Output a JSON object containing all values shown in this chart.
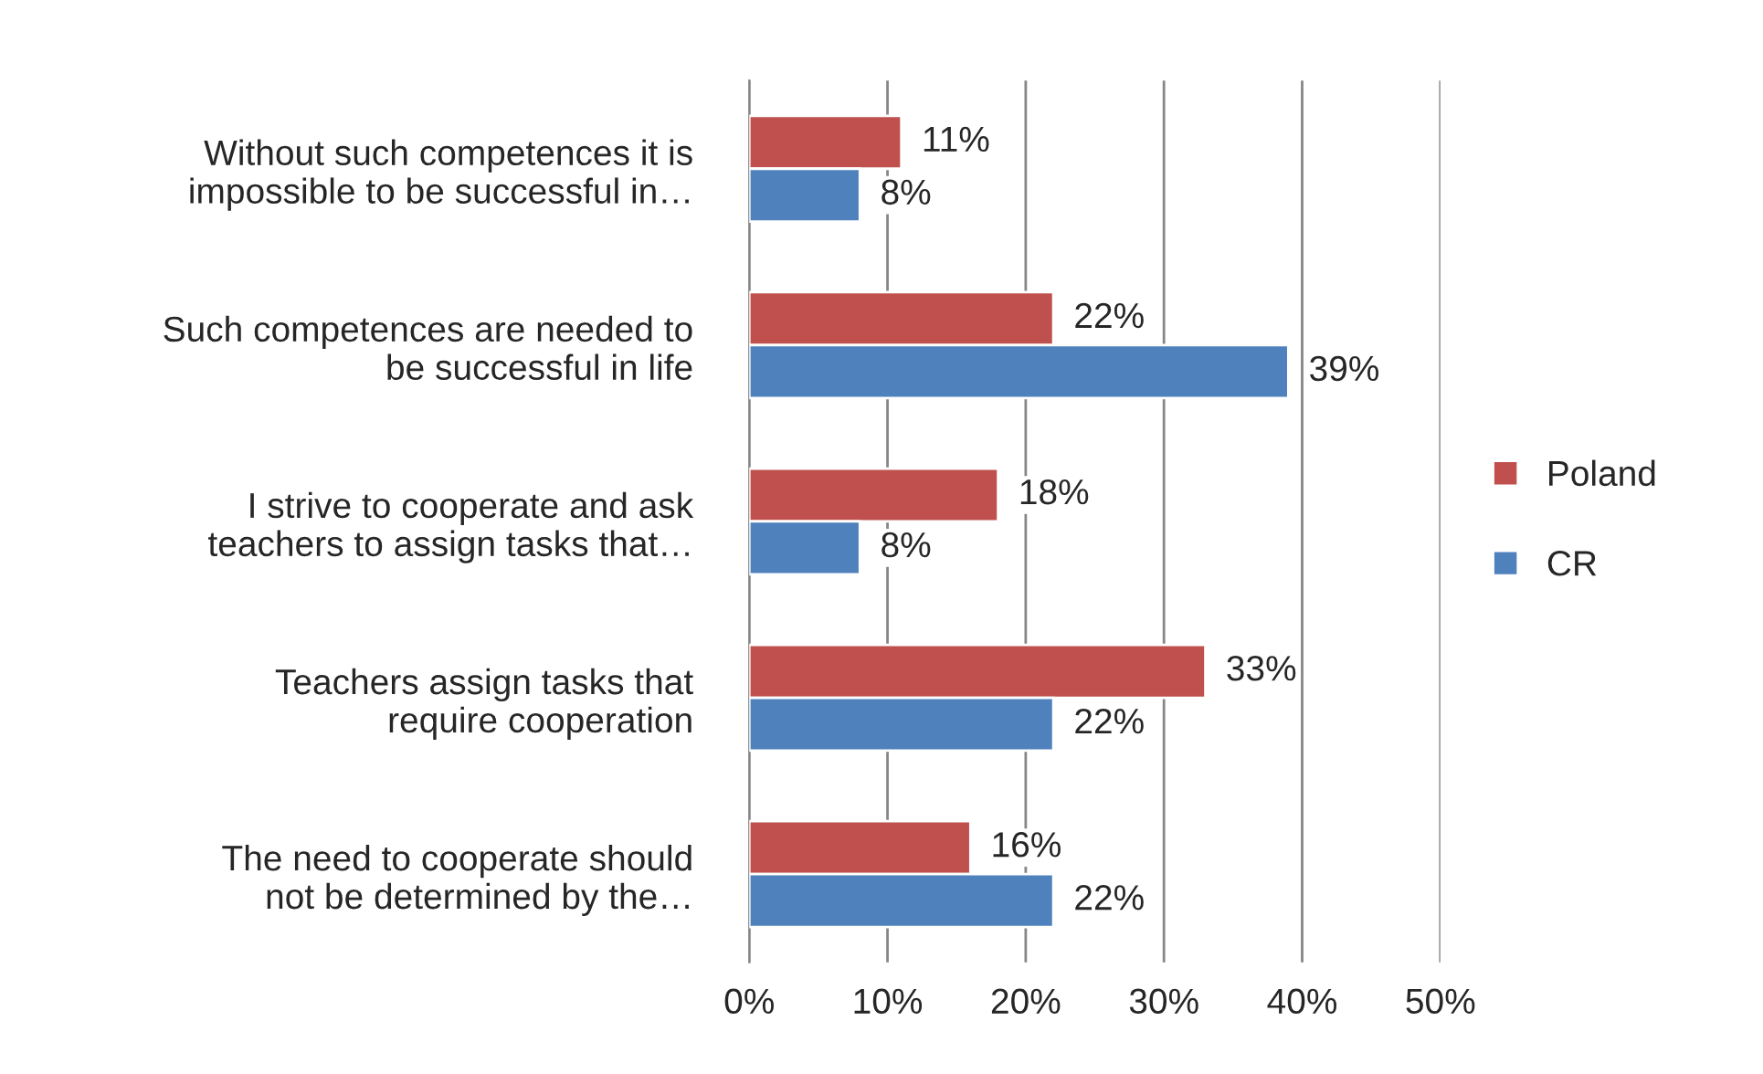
{
  "chart_data": {
    "type": "bar",
    "orientation": "horizontal",
    "categories": [
      "Without such competences it is\nimpossible to be successful in…",
      "Such competences are needed to\nbe successful in life",
      "I strive to cooperate and ask\nteachers to assign tasks that…",
      "Teachers assign tasks that\nrequire cooperation",
      "The need to cooperate should\nnot be determined by the…"
    ],
    "series": [
      {
        "name": "Poland",
        "color": "#c0504d",
        "values": [
          11,
          22,
          18,
          33,
          16
        ],
        "value_labels": [
          "11%",
          "22%",
          "18%",
          "33%",
          "16%"
        ]
      },
      {
        "name": "CR",
        "color": "#4f81bd",
        "values": [
          8,
          39,
          8,
          22,
          22
        ],
        "value_labels": [
          "8%",
          "39%",
          "8%",
          "22%",
          "22%"
        ]
      }
    ],
    "xlim": [
      0,
      50
    ],
    "xticks": [
      {
        "value": 0,
        "label": "0%"
      },
      {
        "value": 10,
        "label": "10%"
      },
      {
        "value": 20,
        "label": "20%"
      },
      {
        "value": 30,
        "label": "30%"
      },
      {
        "value": 40,
        "label": "40%"
      },
      {
        "value": 50,
        "label": "50%"
      }
    ],
    "grid": "x",
    "legend": "right"
  }
}
